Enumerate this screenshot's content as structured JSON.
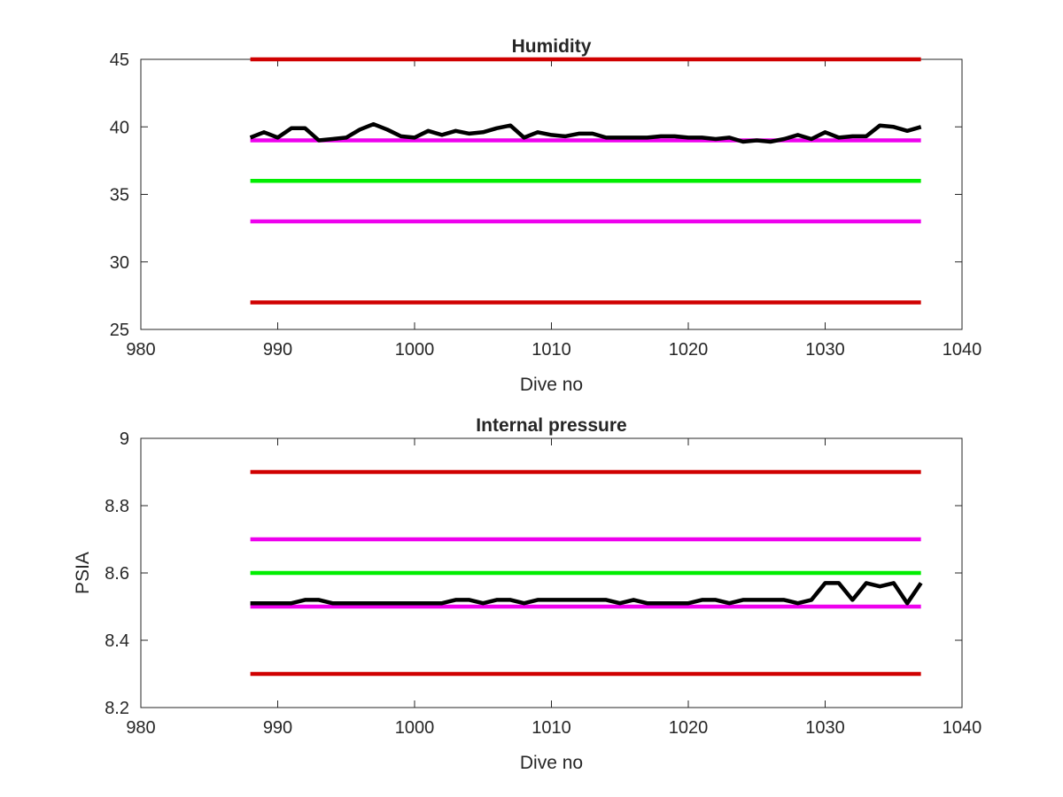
{
  "chart_data": [
    {
      "type": "line",
      "title": "Humidity",
      "xlabel": "Dive no",
      "ylabel": "",
      "xlim": [
        980,
        1040
      ],
      "ylim": [
        25,
        45
      ],
      "xticks": [
        980,
        990,
        1000,
        1010,
        1020,
        1030,
        1040
      ],
      "yticks": [
        25,
        30,
        35,
        40,
        45
      ],
      "grid": false,
      "box": true,
      "reference_lines": [
        {
          "y": 45,
          "x": [
            988,
            1037
          ],
          "color": "#d00000"
        },
        {
          "y": 39,
          "x": [
            988,
            1037
          ],
          "color": "#ee00ee"
        },
        {
          "y": 36,
          "x": [
            988,
            1037
          ],
          "color": "#00ee00"
        },
        {
          "y": 33,
          "x": [
            988,
            1037
          ],
          "color": "#ee00ee"
        },
        {
          "y": 27,
          "x": [
            988,
            1037
          ],
          "color": "#d00000"
        }
      ],
      "series": [
        {
          "color": "#000000",
          "x": [
            988,
            989,
            990,
            991,
            992,
            993,
            994,
            995,
            996,
            997,
            998,
            999,
            1000,
            1001,
            1002,
            1003,
            1004,
            1005,
            1006,
            1007,
            1008,
            1009,
            1010,
            1011,
            1012,
            1013,
            1014,
            1015,
            1016,
            1017,
            1018,
            1019,
            1020,
            1021,
            1022,
            1023,
            1024,
            1025,
            1026,
            1027,
            1028,
            1029,
            1030,
            1031,
            1032,
            1033,
            1034,
            1035,
            1036,
            1037
          ],
          "values": [
            39.2,
            39.6,
            39.2,
            39.9,
            39.9,
            39.0,
            39.1,
            39.2,
            39.8,
            40.2,
            39.8,
            39.3,
            39.2,
            39.7,
            39.4,
            39.7,
            39.5,
            39.6,
            39.9,
            40.1,
            39.2,
            39.6,
            39.4,
            39.3,
            39.5,
            39.5,
            39.2,
            39.2,
            39.2,
            39.2,
            39.3,
            39.3,
            39.2,
            39.2,
            39.1,
            39.2,
            38.9,
            39.0,
            38.9,
            39.1,
            39.4,
            39.1,
            39.6,
            39.2,
            39.3,
            39.3,
            40.1,
            40.0,
            39.7,
            40.0
          ]
        }
      ]
    },
    {
      "type": "line",
      "title": "Internal pressure",
      "xlabel": "Dive no",
      "ylabel": "PSIA",
      "xlim": [
        980,
        1040
      ],
      "ylim": [
        8.2,
        9
      ],
      "xticks": [
        980,
        990,
        1000,
        1010,
        1020,
        1030,
        1040
      ],
      "yticks": [
        8.2,
        8.4,
        8.6,
        8.8,
        9
      ],
      "grid": false,
      "box": true,
      "reference_lines": [
        {
          "y": 8.9,
          "x": [
            988,
            1037
          ],
          "color": "#d00000"
        },
        {
          "y": 8.7,
          "x": [
            988,
            1037
          ],
          "color": "#ee00ee"
        },
        {
          "y": 8.6,
          "x": [
            988,
            1037
          ],
          "color": "#00ee00"
        },
        {
          "y": 8.5,
          "x": [
            988,
            1037
          ],
          "color": "#ee00ee"
        },
        {
          "y": 8.3,
          "x": [
            988,
            1037
          ],
          "color": "#d00000"
        }
      ],
      "series": [
        {
          "color": "#000000",
          "x": [
            988,
            989,
            990,
            991,
            992,
            993,
            994,
            995,
            996,
            997,
            998,
            999,
            1000,
            1001,
            1002,
            1003,
            1004,
            1005,
            1006,
            1007,
            1008,
            1009,
            1010,
            1011,
            1012,
            1013,
            1014,
            1015,
            1016,
            1017,
            1018,
            1019,
            1020,
            1021,
            1022,
            1023,
            1024,
            1025,
            1026,
            1027,
            1028,
            1029,
            1030,
            1031,
            1032,
            1033,
            1034,
            1035,
            1036,
            1037
          ],
          "values": [
            8.51,
            8.51,
            8.51,
            8.51,
            8.52,
            8.52,
            8.51,
            8.51,
            8.51,
            8.51,
            8.51,
            8.51,
            8.51,
            8.51,
            8.51,
            8.52,
            8.52,
            8.51,
            8.52,
            8.52,
            8.51,
            8.52,
            8.52,
            8.52,
            8.52,
            8.52,
            8.52,
            8.51,
            8.52,
            8.51,
            8.51,
            8.51,
            8.51,
            8.52,
            8.52,
            8.51,
            8.52,
            8.52,
            8.52,
            8.52,
            8.51,
            8.52,
            8.57,
            8.57,
            8.52,
            8.57,
            8.56,
            8.57,
            8.51,
            8.57
          ]
        }
      ]
    }
  ]
}
